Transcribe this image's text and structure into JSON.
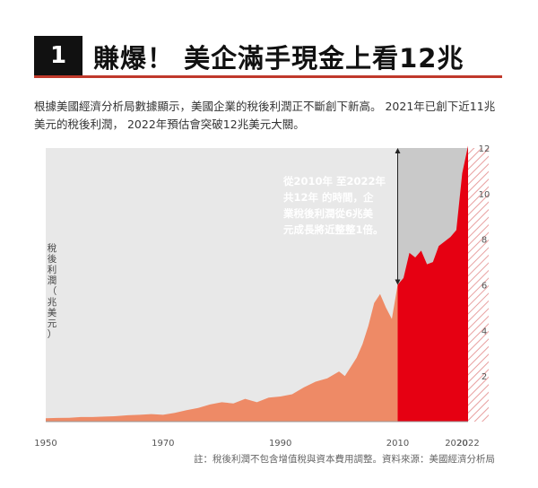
{
  "header": {
    "number": "1",
    "title": "賺爆！ 美企滿手現金上看12兆"
  },
  "description": {
    "line1": "根據美國經濟分析局數據顯示，美國企業的稅後利潤正不斷創下新高。 2021年已創下近11兆",
    "line2": "美元的稅後利潤， 2022年預估會突破12兆美元大關。"
  },
  "footnote": "註：稅後利潤不包含增值稅與資本費用調整。資料來源：美國經濟分析局",
  "colors": {
    "background": "#e8e8e8",
    "highlight_bg": "#c9c9c9",
    "area_early": "#ee8a66",
    "area_recent": "#e60012",
    "hatch": "#e8a0a0",
    "title_rule": "#c0392b"
  },
  "chart_data": {
    "type": "area",
    "xlim": [
      1950,
      2022
    ],
    "ylim": [
      0,
      12
    ],
    "x_ticks": [
      1950,
      1970,
      1990,
      2010,
      2020,
      2022
    ],
    "y_ticks": [
      2,
      4,
      6,
      8,
      10,
      12
    ],
    "ylabel_chars": [
      "稅",
      "後",
      "利",
      "潤",
      "（",
      "兆",
      "美",
      "元",
      "）"
    ],
    "annotation_lines": [
      "從2010年 至2022年",
      "共12年 的時間，企",
      "業稅後利潤從6兆美",
      "元成長將近整整1倍。"
    ],
    "split_year": 2010,
    "series": [
      {
        "x": [
          1950,
          1952,
          1954,
          1956,
          1958,
          1960,
          1962,
          1964,
          1966,
          1968,
          1970,
          1972,
          1974,
          1976,
          1978,
          1980,
          1982,
          1984,
          1986,
          1988,
          1990,
          1992,
          1994,
          1996,
          1998,
          2000,
          2001,
          2002,
          2003,
          2004,
          2005,
          2006,
          2007,
          2008,
          2009,
          2010
        ],
        "y": [
          0.15,
          0.16,
          0.17,
          0.2,
          0.2,
          0.22,
          0.24,
          0.28,
          0.3,
          0.33,
          0.3,
          0.38,
          0.5,
          0.6,
          0.75,
          0.85,
          0.8,
          1.0,
          0.85,
          1.05,
          1.1,
          1.2,
          1.5,
          1.75,
          1.9,
          2.2,
          2.0,
          2.4,
          2.8,
          3.4,
          4.2,
          5.2,
          5.6,
          5.0,
          4.5,
          6.0
        ]
      },
      {
        "x": [
          2010,
          2011,
          2012,
          2013,
          2014,
          2015,
          2016,
          2017,
          2018,
          2019,
          2020,
          2021,
          2022
        ],
        "y": [
          6.0,
          6.3,
          7.4,
          7.2,
          7.5,
          6.9,
          7.0,
          7.7,
          7.9,
          8.1,
          8.4,
          10.9,
          12.1
        ]
      }
    ]
  }
}
